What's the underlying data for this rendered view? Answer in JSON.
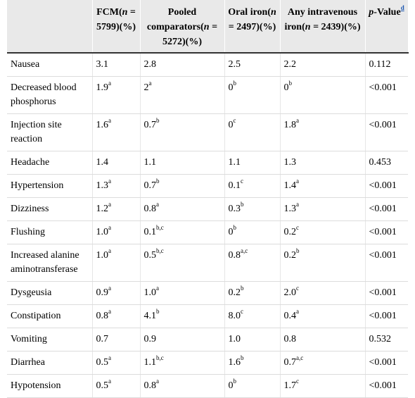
{
  "table": {
    "header": [
      [],
      [
        {
          "text": "FCM("
        },
        {
          "text": "n",
          "italic": true
        },
        {
          "text": " = 5799)(%)"
        }
      ],
      [
        {
          "text": "Pooled comparators("
        },
        {
          "text": "n",
          "italic": true
        },
        {
          "text": " = 5272)(%)"
        }
      ],
      [
        {
          "text": "Oral iron("
        },
        {
          "text": "n",
          "italic": true
        },
        {
          "text": " = 2497)(%)"
        }
      ],
      [
        {
          "text": "Any intravenous iron("
        },
        {
          "text": "n",
          "italic": true
        },
        {
          "text": " = 2439)(%)"
        }
      ],
      [
        {
          "text": "p",
          "italic": true
        },
        {
          "text": "-Value"
        },
        {
          "text": "d",
          "link": true
        }
      ]
    ],
    "rows": [
      [
        "Nausea",
        {
          "text": "3.1"
        },
        {
          "text": "2.8"
        },
        {
          "text": "2.5"
        },
        {
          "text": "2.2"
        },
        {
          "text": "0.112"
        }
      ],
      [
        "Decreased blood phosphorus",
        {
          "text": "1.9",
          "sup": "a"
        },
        {
          "text": "2",
          "sup": "a"
        },
        {
          "text": "0",
          "sup": "b"
        },
        {
          "text": "0",
          "sup": "b"
        },
        {
          "text": "<0.001"
        }
      ],
      [
        "Injection site reaction",
        {
          "text": "1.6",
          "sup": "a"
        },
        {
          "text": "0.7",
          "sup": "b"
        },
        {
          "text": "0",
          "sup": "c"
        },
        {
          "text": "1.8",
          "sup": "a"
        },
        {
          "text": "<0.001"
        }
      ],
      [
        "Headache",
        {
          "text": "1.4"
        },
        {
          "text": "1.1"
        },
        {
          "text": "1.1"
        },
        {
          "text": "1.3"
        },
        {
          "text": "0.453"
        }
      ],
      [
        "Hypertension",
        {
          "text": "1.3",
          "sup": "a"
        },
        {
          "text": "0.7",
          "sup": "b"
        },
        {
          "text": "0.1",
          "sup": "c"
        },
        {
          "text": "1.4",
          "sup": "a"
        },
        {
          "text": "<0.001"
        }
      ],
      [
        "Dizziness",
        {
          "text": "1.2",
          "sup": "a"
        },
        {
          "text": "0.8",
          "sup": "a"
        },
        {
          "text": "0.3",
          "sup": "b"
        },
        {
          "text": "1.3",
          "sup": "a"
        },
        {
          "text": "<0.001"
        }
      ],
      [
        "Flushing",
        {
          "text": "1.0",
          "sup": "a"
        },
        {
          "text": "0.1",
          "sup": "b,c"
        },
        {
          "text": "0",
          "sup": "b"
        },
        {
          "text": "0.2",
          "sup": "c"
        },
        {
          "text": "<0.001"
        }
      ],
      [
        "Increased alanine aminotransferase",
        {
          "text": "1.0",
          "sup": "a"
        },
        {
          "text": "0.5",
          "sup": "b,c"
        },
        {
          "text": "0.8",
          "sup": "a,c"
        },
        {
          "text": "0.2",
          "sup": "b"
        },
        {
          "text": "<0.001"
        }
      ],
      [
        "Dysgeusia",
        {
          "text": "0.9",
          "sup": "a"
        },
        {
          "text": "1.0",
          "sup": "a"
        },
        {
          "text": "0.2",
          "sup": "b"
        },
        {
          "text": "2.0",
          "sup": "c"
        },
        {
          "text": "<0.001"
        }
      ],
      [
        "Constipation",
        {
          "text": "0.8",
          "sup": "a"
        },
        {
          "text": "4.1",
          "sup": "b"
        },
        {
          "text": "8.0",
          "sup": "c"
        },
        {
          "text": "0.4",
          "sup": "a"
        },
        {
          "text": "<0.001"
        }
      ],
      [
        "Vomiting",
        {
          "text": "0.7"
        },
        {
          "text": "0.9"
        },
        {
          "text": "1.0"
        },
        {
          "text": "0.8"
        },
        {
          "text": "0.532"
        }
      ],
      [
        "Diarrhea",
        {
          "text": "0.5",
          "sup": "a"
        },
        {
          "text": "1.1",
          "sup": "b,c"
        },
        {
          "text": "1.6",
          "sup": "b"
        },
        {
          "text": "0.7",
          "sup": "a,c"
        },
        {
          "text": "<0.001"
        }
      ],
      [
        "Hypotension",
        {
          "text": "0.5",
          "sup": "a"
        },
        {
          "text": "0.8",
          "sup": "a"
        },
        {
          "text": "0",
          "sup": "b"
        },
        {
          "text": "1.7",
          "sup": "c"
        },
        {
          "text": "<0.001"
        }
      ]
    ]
  }
}
